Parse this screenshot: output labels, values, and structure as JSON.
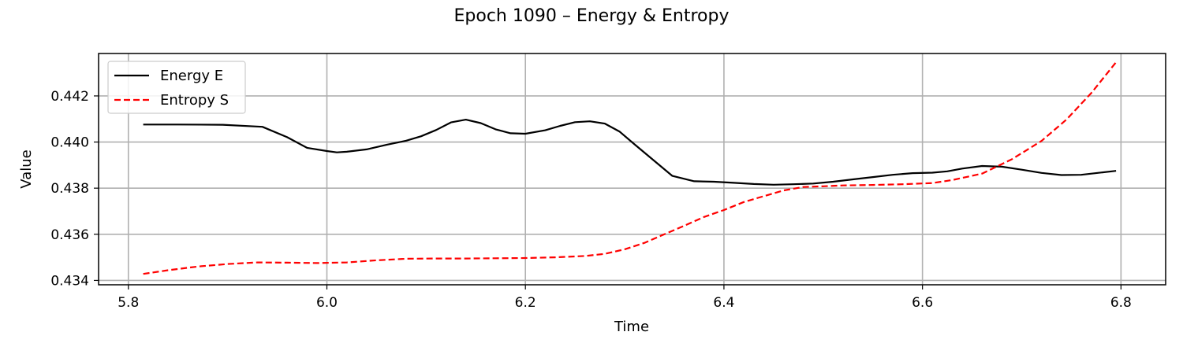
{
  "chart_data": {
    "type": "line",
    "title": "Epoch 1090 – Energy & Entropy",
    "xlabel": "Time",
    "ylabel": "Value",
    "xlim": [
      5.77,
      6.845
    ],
    "ylim": [
      0.43381,
      0.44384
    ],
    "xticks": [
      5.8,
      6.0,
      6.2,
      6.4,
      6.6,
      6.8
    ],
    "xtick_labels": [
      "5.8",
      "6.0",
      "6.2",
      "6.4",
      "6.6",
      "6.8"
    ],
    "yticks": [
      0.434,
      0.436,
      0.438,
      0.44,
      0.442
    ],
    "ytick_labels": [
      "0.434",
      "0.436",
      "0.438",
      "0.440",
      "0.442"
    ],
    "grid": true,
    "legend_position": "upper-left",
    "series": [
      {
        "name": "Energy E",
        "color": "#000000",
        "style": "solid",
        "x": [
          5.815,
          5.85,
          5.895,
          5.935,
          5.96,
          5.98,
          6.0,
          6.01,
          6.02,
          6.04,
          6.06,
          6.08,
          6.095,
          6.11,
          6.125,
          6.14,
          6.155,
          6.17,
          6.185,
          6.2,
          6.22,
          6.235,
          6.25,
          6.265,
          6.28,
          6.295,
          6.31,
          6.33,
          6.348,
          6.37,
          6.39,
          6.41,
          6.43,
          6.45,
          6.47,
          6.49,
          6.51,
          6.53,
          6.55,
          6.57,
          6.59,
          6.61,
          6.625,
          6.64,
          6.66,
          6.68,
          6.7,
          6.72,
          6.74,
          6.76,
          6.78,
          6.795
        ],
        "y": [
          0.44076,
          0.44076,
          0.44075,
          0.44066,
          0.44021,
          0.43975,
          0.43961,
          0.43955,
          0.43958,
          0.43968,
          0.43988,
          0.44006,
          0.44025,
          0.44052,
          0.44085,
          0.44097,
          0.44082,
          0.44055,
          0.44038,
          0.44036,
          0.44051,
          0.4407,
          0.44086,
          0.4409,
          0.4408,
          0.44045,
          0.4399,
          0.43918,
          0.43853,
          0.4383,
          0.43828,
          0.43823,
          0.43818,
          0.43815,
          0.43817,
          0.4382,
          0.43828,
          0.43838,
          0.43848,
          0.43858,
          0.43865,
          0.43867,
          0.43873,
          0.43885,
          0.43896,
          0.43893,
          0.4388,
          0.43866,
          0.43857,
          0.43858,
          0.43868,
          0.43875
        ]
      },
      {
        "name": "Entropy S",
        "color": "#ff0000",
        "style": "dashed",
        "x": [
          5.815,
          5.84,
          5.87,
          5.9,
          5.93,
          5.96,
          5.99,
          6.02,
          6.05,
          6.08,
          6.11,
          6.14,
          6.17,
          6.2,
          6.23,
          6.26,
          6.28,
          6.3,
          6.32,
          6.34,
          6.36,
          6.38,
          6.4,
          6.42,
          6.44,
          6.46,
          6.48,
          6.5,
          6.52,
          6.55,
          6.58,
          6.61,
          6.63,
          6.66,
          6.69,
          6.72,
          6.745,
          6.77,
          6.795
        ],
        "y": [
          0.43428,
          0.43444,
          0.4346,
          0.43471,
          0.43478,
          0.43477,
          0.43475,
          0.43478,
          0.43487,
          0.43494,
          0.43495,
          0.43495,
          0.43496,
          0.43497,
          0.435,
          0.43506,
          0.43515,
          0.43535,
          0.43563,
          0.436,
          0.43637,
          0.43675,
          0.43705,
          0.4374,
          0.43765,
          0.4379,
          0.43805,
          0.43808,
          0.43812,
          0.43814,
          0.43817,
          0.43822,
          0.43835,
          0.43863,
          0.43925,
          0.44005,
          0.44097,
          0.44212,
          0.44346
        ]
      }
    ]
  }
}
